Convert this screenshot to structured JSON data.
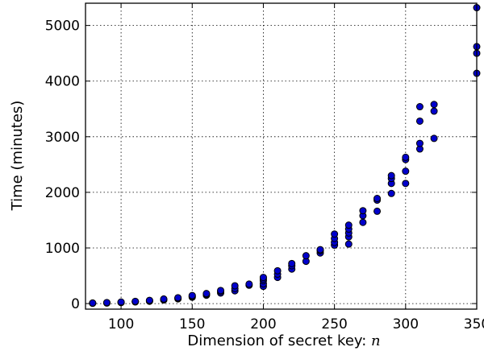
{
  "chart_data": {
    "type": "scatter",
    "title": "",
    "xlabel": "Dimension of secret key: ",
    "xlabel_var": "n",
    "ylabel": "Time (minutes)",
    "xlim": [
      75,
      350
    ],
    "ylim": [
      -100,
      5400
    ],
    "xticks": [
      100,
      150,
      200,
      250,
      300,
      350
    ],
    "yticks": [
      0,
      1000,
      2000,
      3000,
      4000,
      5000
    ],
    "grid": true,
    "marker_color": "#0000cc",
    "series": [
      {
        "points": [
          [
            80,
            5
          ],
          [
            80,
            8
          ],
          [
            80,
            10
          ],
          [
            90,
            10
          ],
          [
            90,
            14
          ],
          [
            90,
            18
          ],
          [
            100,
            18
          ],
          [
            100,
            22
          ],
          [
            100,
            28
          ],
          [
            110,
            30
          ],
          [
            110,
            35
          ],
          [
            110,
            40
          ],
          [
            120,
            42
          ],
          [
            120,
            50
          ],
          [
            120,
            58
          ],
          [
            130,
            65
          ],
          [
            130,
            75
          ],
          [
            130,
            82
          ],
          [
            140,
            85
          ],
          [
            140,
            95
          ],
          [
            140,
            105
          ],
          [
            150,
            115
          ],
          [
            150,
            130
          ],
          [
            150,
            145
          ],
          [
            160,
            150
          ],
          [
            160,
            165
          ],
          [
            160,
            180
          ],
          [
            170,
            190
          ],
          [
            170,
            215
          ],
          [
            170,
            235
          ],
          [
            180,
            230
          ],
          [
            180,
            270
          ],
          [
            180,
            320
          ],
          [
            190,
            330
          ],
          [
            190,
            350
          ],
          [
            200,
            310
          ],
          [
            200,
            355
          ],
          [
            200,
            410
          ],
          [
            200,
            440
          ],
          [
            200,
            470
          ],
          [
            210,
            470
          ],
          [
            210,
            530
          ],
          [
            210,
            590
          ],
          [
            220,
            620
          ],
          [
            220,
            680
          ],
          [
            220,
            720
          ],
          [
            230,
            760
          ],
          [
            230,
            860
          ],
          [
            240,
            910
          ],
          [
            240,
            950
          ],
          [
            240,
            970
          ],
          [
            250,
            1050
          ],
          [
            250,
            1100
          ],
          [
            250,
            1170
          ],
          [
            250,
            1250
          ],
          [
            260,
            1070
          ],
          [
            260,
            1200
          ],
          [
            260,
            1270
          ],
          [
            260,
            1340
          ],
          [
            260,
            1410
          ],
          [
            270,
            1460
          ],
          [
            270,
            1580
          ],
          [
            270,
            1670
          ],
          [
            280,
            1660
          ],
          [
            280,
            1860
          ],
          [
            280,
            1890
          ],
          [
            290,
            1980
          ],
          [
            290,
            2160
          ],
          [
            290,
            2250
          ],
          [
            290,
            2300
          ],
          [
            300,
            2160
          ],
          [
            300,
            2380
          ],
          [
            300,
            2590
          ],
          [
            300,
            2630
          ],
          [
            310,
            2780
          ],
          [
            310,
            2880
          ],
          [
            310,
            3280
          ],
          [
            310,
            3540
          ],
          [
            320,
            2970
          ],
          [
            320,
            3460
          ],
          [
            320,
            3580
          ],
          [
            350,
            4140
          ],
          [
            350,
            4500
          ],
          [
            350,
            4620
          ],
          [
            350,
            5320
          ]
        ]
      }
    ]
  }
}
